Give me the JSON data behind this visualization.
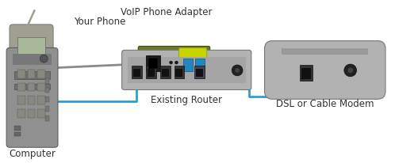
{
  "background_color": "#ffffff",
  "labels": {
    "phone": "Your Phone",
    "adapter": "VoIP Phone Adapter",
    "router": "Existing Router",
    "modem": "DSL or Cable Modem",
    "computer": "Computer"
  },
  "cable_blue": "#2B9FD4",
  "cable_gray": "#8A8A8A",
  "text_color": "#333333",
  "label_font_size": 8.5,
  "phone_body": "#A0A090",
  "adapter_olive": "#6B7A2A",
  "adapter_yellow": "#C8D400",
  "router_body": "#B2B2B2",
  "modem_body": "#B2B2B2",
  "computer_body": "#909090",
  "port_dark": "#333333",
  "port_blue": "#3399CC"
}
